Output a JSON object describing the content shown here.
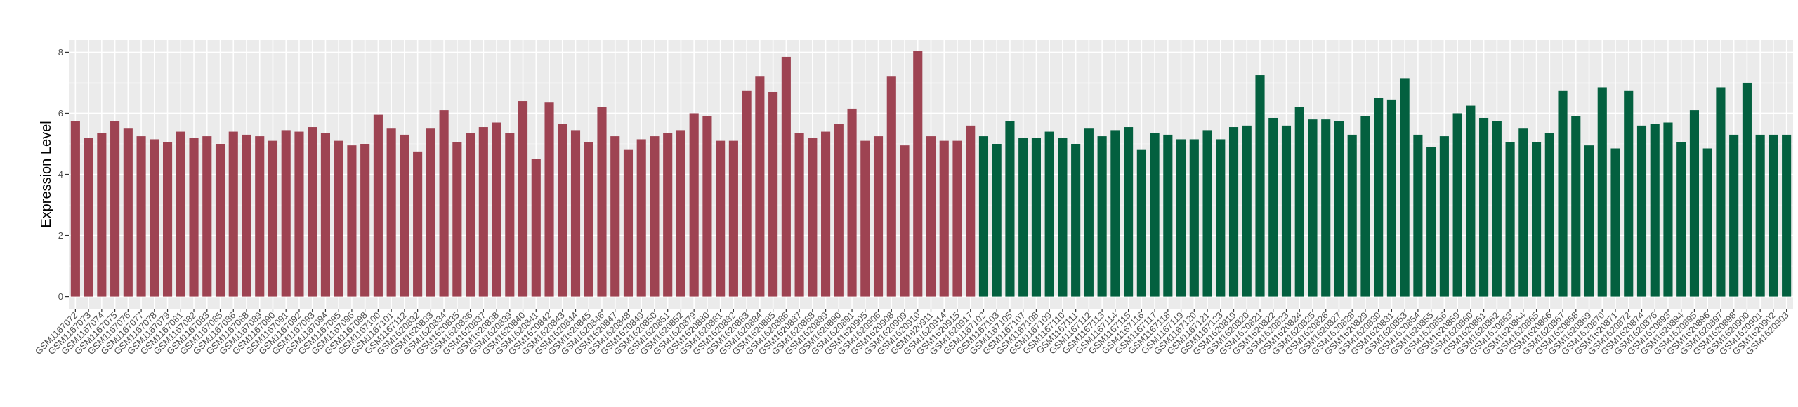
{
  "chart_data": {
    "type": "bar",
    "title": "",
    "xlabel": "",
    "ylabel": "Expression Level",
    "ylim": [
      -0.4,
      8.4
    ],
    "yticks": [
      0,
      2,
      4,
      6,
      8
    ],
    "grid": true,
    "legend": "none",
    "colors": {
      "group1": "#9e4352",
      "group2": "#03603f",
      "panel": "#ebebeb"
    },
    "categories": [
      "GSM1167072",
      "GSM1167073",
      "GSM1167074",
      "GSM1167075",
      "GSM1167076",
      "GSM1167077",
      "GSM1167078",
      "GSM1167079",
      "GSM1167081",
      "GSM1167082",
      "GSM1167083",
      "GSM1167085",
      "GSM1167086",
      "GSM1167088",
      "GSM1167089",
      "GSM1167090",
      "GSM1167091",
      "GSM1167092",
      "GSM1167093",
      "GSM1167094",
      "GSM1167095",
      "GSM1167096",
      "GSM1167098",
      "GSM1167100",
      "GSM1167101",
      "GSM1167112",
      "GSM1620832",
      "GSM1620833",
      "GSM1620834",
      "GSM1620835",
      "GSM1620836",
      "GSM1620837",
      "GSM1620838",
      "GSM1620839",
      "GSM1620840",
      "GSM1620841",
      "GSM1620842",
      "GSM1620843",
      "GSM1620844",
      "GSM1620845",
      "GSM1620846",
      "GSM1620847",
      "GSM1620848",
      "GSM1620849",
      "GSM1620850",
      "GSM1620851",
      "GSM1620852",
      "GSM1620879",
      "GSM1620880",
      "GSM1620881",
      "GSM1620882",
      "GSM1620883",
      "GSM1620884",
      "GSM1620885",
      "GSM1620886",
      "GSM1620887",
      "GSM1620888",
      "GSM1620889",
      "GSM1620890",
      "GSM1620891",
      "GSM1620905",
      "GSM1620906",
      "GSM1620908",
      "GSM1620909",
      "GSM1620910",
      "GSM1620911",
      "GSM1620914",
      "GSM1620915",
      "GSM1620917",
      "GSM1167102",
      "GSM1167103",
      "GSM1167105",
      "GSM1167107",
      "GSM1167108",
      "GSM1167109",
      "GSM1167110",
      "GSM1167111",
      "GSM1167112",
      "GSM1167113",
      "GSM1167114",
      "GSM1167115",
      "GSM1167116",
      "GSM1167117",
      "GSM1167118",
      "GSM1167119",
      "GSM1167120",
      "GSM1167121",
      "GSM1167123",
      "GSM1620819",
      "GSM1620820",
      "GSM1620821",
      "GSM1620822",
      "GSM1620823",
      "GSM1620824",
      "GSM1620825",
      "GSM1620826",
      "GSM1620827",
      "GSM1620828",
      "GSM1620829",
      "GSM1620830",
      "GSM1620831",
      "GSM1620853",
      "GSM1620854",
      "GSM1620855",
      "GSM1620856",
      "GSM1620859",
      "GSM1620860",
      "GSM1620861",
      "GSM1620862",
      "GSM1620863",
      "GSM1620864",
      "GSM1620865",
      "GSM1620866",
      "GSM1620867",
      "GSM1620868",
      "GSM1620869",
      "GSM1620870",
      "GSM1620871",
      "GSM1620872",
      "GSM1620874",
      "GSM1620876",
      "GSM1620893",
      "GSM1620894",
      "GSM1620895",
      "GSM1620896",
      "GSM1620897",
      "GSM1620898",
      "GSM1620900",
      "GSM1620901",
      "GSM1620902",
      "GSM1620903"
    ],
    "values": [
      5.75,
      5.2,
      5.35,
      5.75,
      5.5,
      5.25,
      5.15,
      5.05,
      5.4,
      5.2,
      5.25,
      5.0,
      5.4,
      5.3,
      5.25,
      5.1,
      5.45,
      5.4,
      5.55,
      5.35,
      5.1,
      4.95,
      5.0,
      5.95,
      5.5,
      5.3,
      4.75,
      5.5,
      6.1,
      5.05,
      5.35,
      5.55,
      5.7,
      5.35,
      6.4,
      4.5,
      6.35,
      5.65,
      5.45,
      5.05,
      6.2,
      5.25,
      4.8,
      5.15,
      5.25,
      5.35,
      5.45,
      6.0,
      5.9,
      5.1,
      5.1,
      6.75,
      7.2,
      6.7,
      7.85,
      5.35,
      5.2,
      5.4,
      5.65,
      6.15,
      5.1,
      5.25,
      7.2,
      4.95,
      8.05,
      5.25,
      5.1,
      5.1,
      5.6,
      5.25,
      5.0,
      5.75,
      5.2,
      5.2,
      5.4,
      5.2,
      5.0,
      5.5,
      5.25,
      5.45,
      5.55,
      4.8,
      5.35,
      5.3,
      5.15,
      5.15,
      5.45,
      5.15,
      5.55,
      5.6,
      7.25,
      5.85,
      5.6,
      6.2,
      5.8,
      5.8,
      5.75,
      5.3,
      5.9,
      6.5,
      6.45,
      7.15,
      5.3,
      4.9,
      5.25,
      6.0,
      6.25,
      5.85,
      5.75,
      5.05,
      5.5,
      5.05,
      5.35,
      6.75,
      5.9,
      4.95,
      6.85,
      4.85,
      6.75,
      5.6,
      5.65,
      5.7,
      5.05,
      6.1,
      4.85,
      6.85,
      5.3,
      7.0,
      5.3,
      5.3,
      5.3
    ],
    "group1_count": 69
  }
}
